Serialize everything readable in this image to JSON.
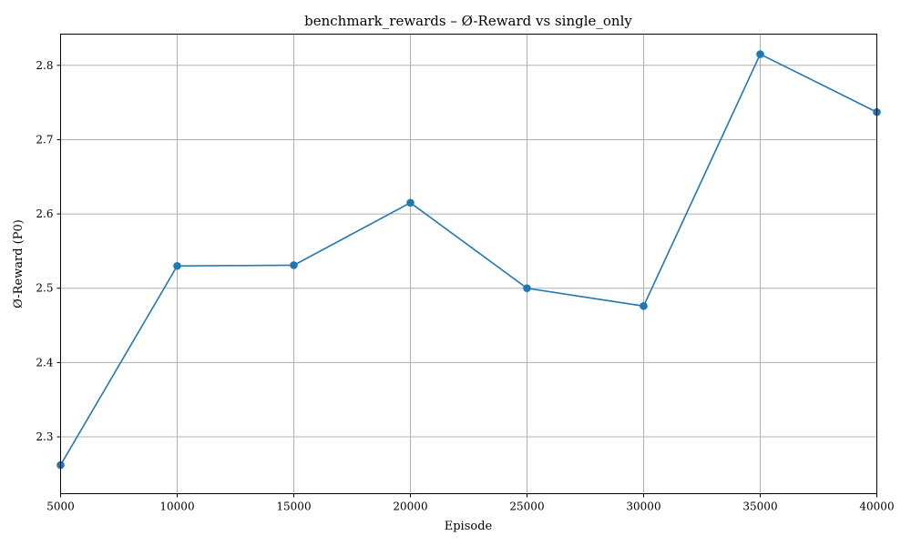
{
  "chart_data": {
    "type": "line",
    "title": "benchmark_rewards – Ø-Reward vs single_only",
    "xlabel": "Episode",
    "ylabel": "Ø-Reward (P0)",
    "x": [
      5000,
      10000,
      15000,
      20000,
      25000,
      30000,
      35000,
      40000
    ],
    "series": [
      {
        "values": [
          2.262,
          2.53,
          2.531,
          2.615,
          2.5,
          2.476,
          2.815,
          2.737
        ],
        "color": "#1f77b4",
        "marker": "circle"
      }
    ],
    "xlim": [
      5000,
      40000
    ],
    "ylim": [
      2.2235,
      2.842
    ],
    "xticks": [
      5000,
      10000,
      15000,
      20000,
      25000,
      30000,
      35000,
      40000
    ],
    "yticks": [
      2.3,
      2.4,
      2.5,
      2.6,
      2.7,
      2.8
    ],
    "ytick_labels": [
      "2.3",
      "2.4",
      "2.5",
      "2.6",
      "2.7",
      "2.8"
    ],
    "grid": true,
    "legend": "none"
  }
}
